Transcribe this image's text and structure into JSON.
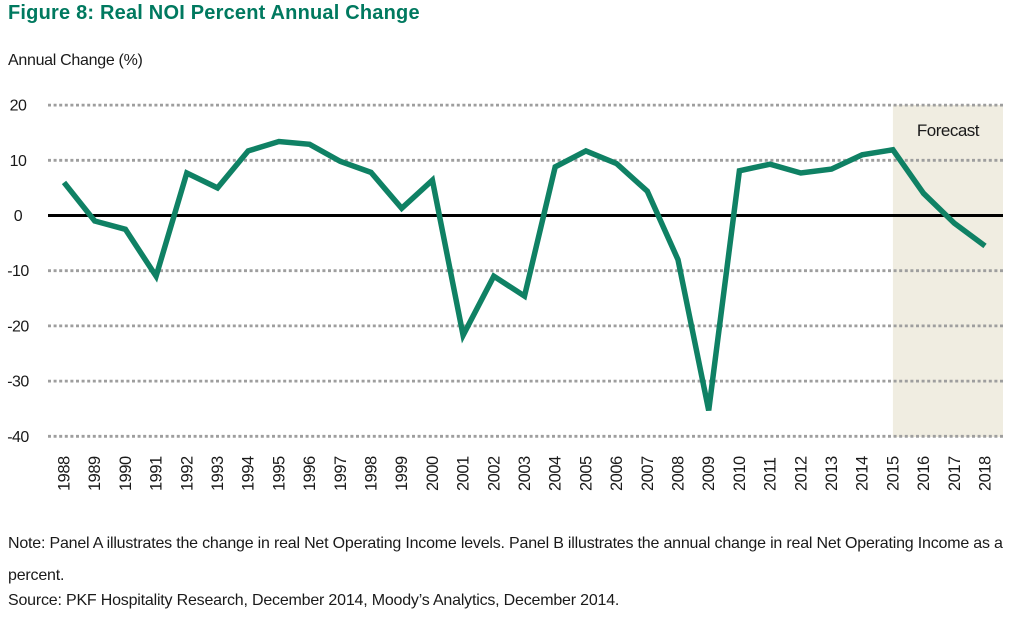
{
  "figure": {
    "title": "Figure 8: Real NOI Percent Annual Change",
    "note": "Note: Panel A illustrates the change in real Net Operating Income levels. Panel B illustrates the annual change in real Net Operating Income as a percent.",
    "source": "Source: PKF Hospitality Research, December 2014, Moody’s Analytics, December 2014."
  },
  "chart_data": {
    "type": "line",
    "title": "Figure 8: Real NOI Percent Annual Change",
    "xlabel": "",
    "ylabel": "Annual Change (%)",
    "x": [
      1988,
      1989,
      1990,
      1991,
      1992,
      1993,
      1994,
      1995,
      1996,
      1997,
      1998,
      1999,
      2000,
      2001,
      2002,
      2003,
      2004,
      2005,
      2006,
      2007,
      2008,
      2009,
      2010,
      2011,
      2012,
      2013,
      2014,
      2015,
      2016,
      2017,
      2018
    ],
    "series": [
      {
        "name": "Real NOI percent annual change",
        "values": [
          6.0,
          -1.0,
          -2.5,
          -11.0,
          7.7,
          5.0,
          11.7,
          13.4,
          12.9,
          9.8,
          7.8,
          1.3,
          6.4,
          -21.7,
          -11.0,
          -14.6,
          8.8,
          11.7,
          9.4,
          4.4,
          -8.0,
          -35.3,
          8.1,
          9.3,
          7.7,
          8.4,
          11.0,
          11.9,
          4.0,
          -1.4,
          -5.5
        ]
      }
    ],
    "ylim": [
      -40,
      20
    ],
    "yticks": [
      20,
      10,
      0,
      -10,
      -20,
      -30,
      -40
    ],
    "grid": "horizontal-dashed",
    "zero_line": true,
    "legend": "none",
    "forecast": {
      "label": "Forecast",
      "start_year": 2015,
      "end_year": 2018
    },
    "colors": {
      "line": "#0f8164",
      "forecast_band": "#f0ede1",
      "grid": "#9e9e9e",
      "zero_line": "#000000",
      "title_green": "#00795f",
      "text": "#1a1a1a"
    }
  }
}
